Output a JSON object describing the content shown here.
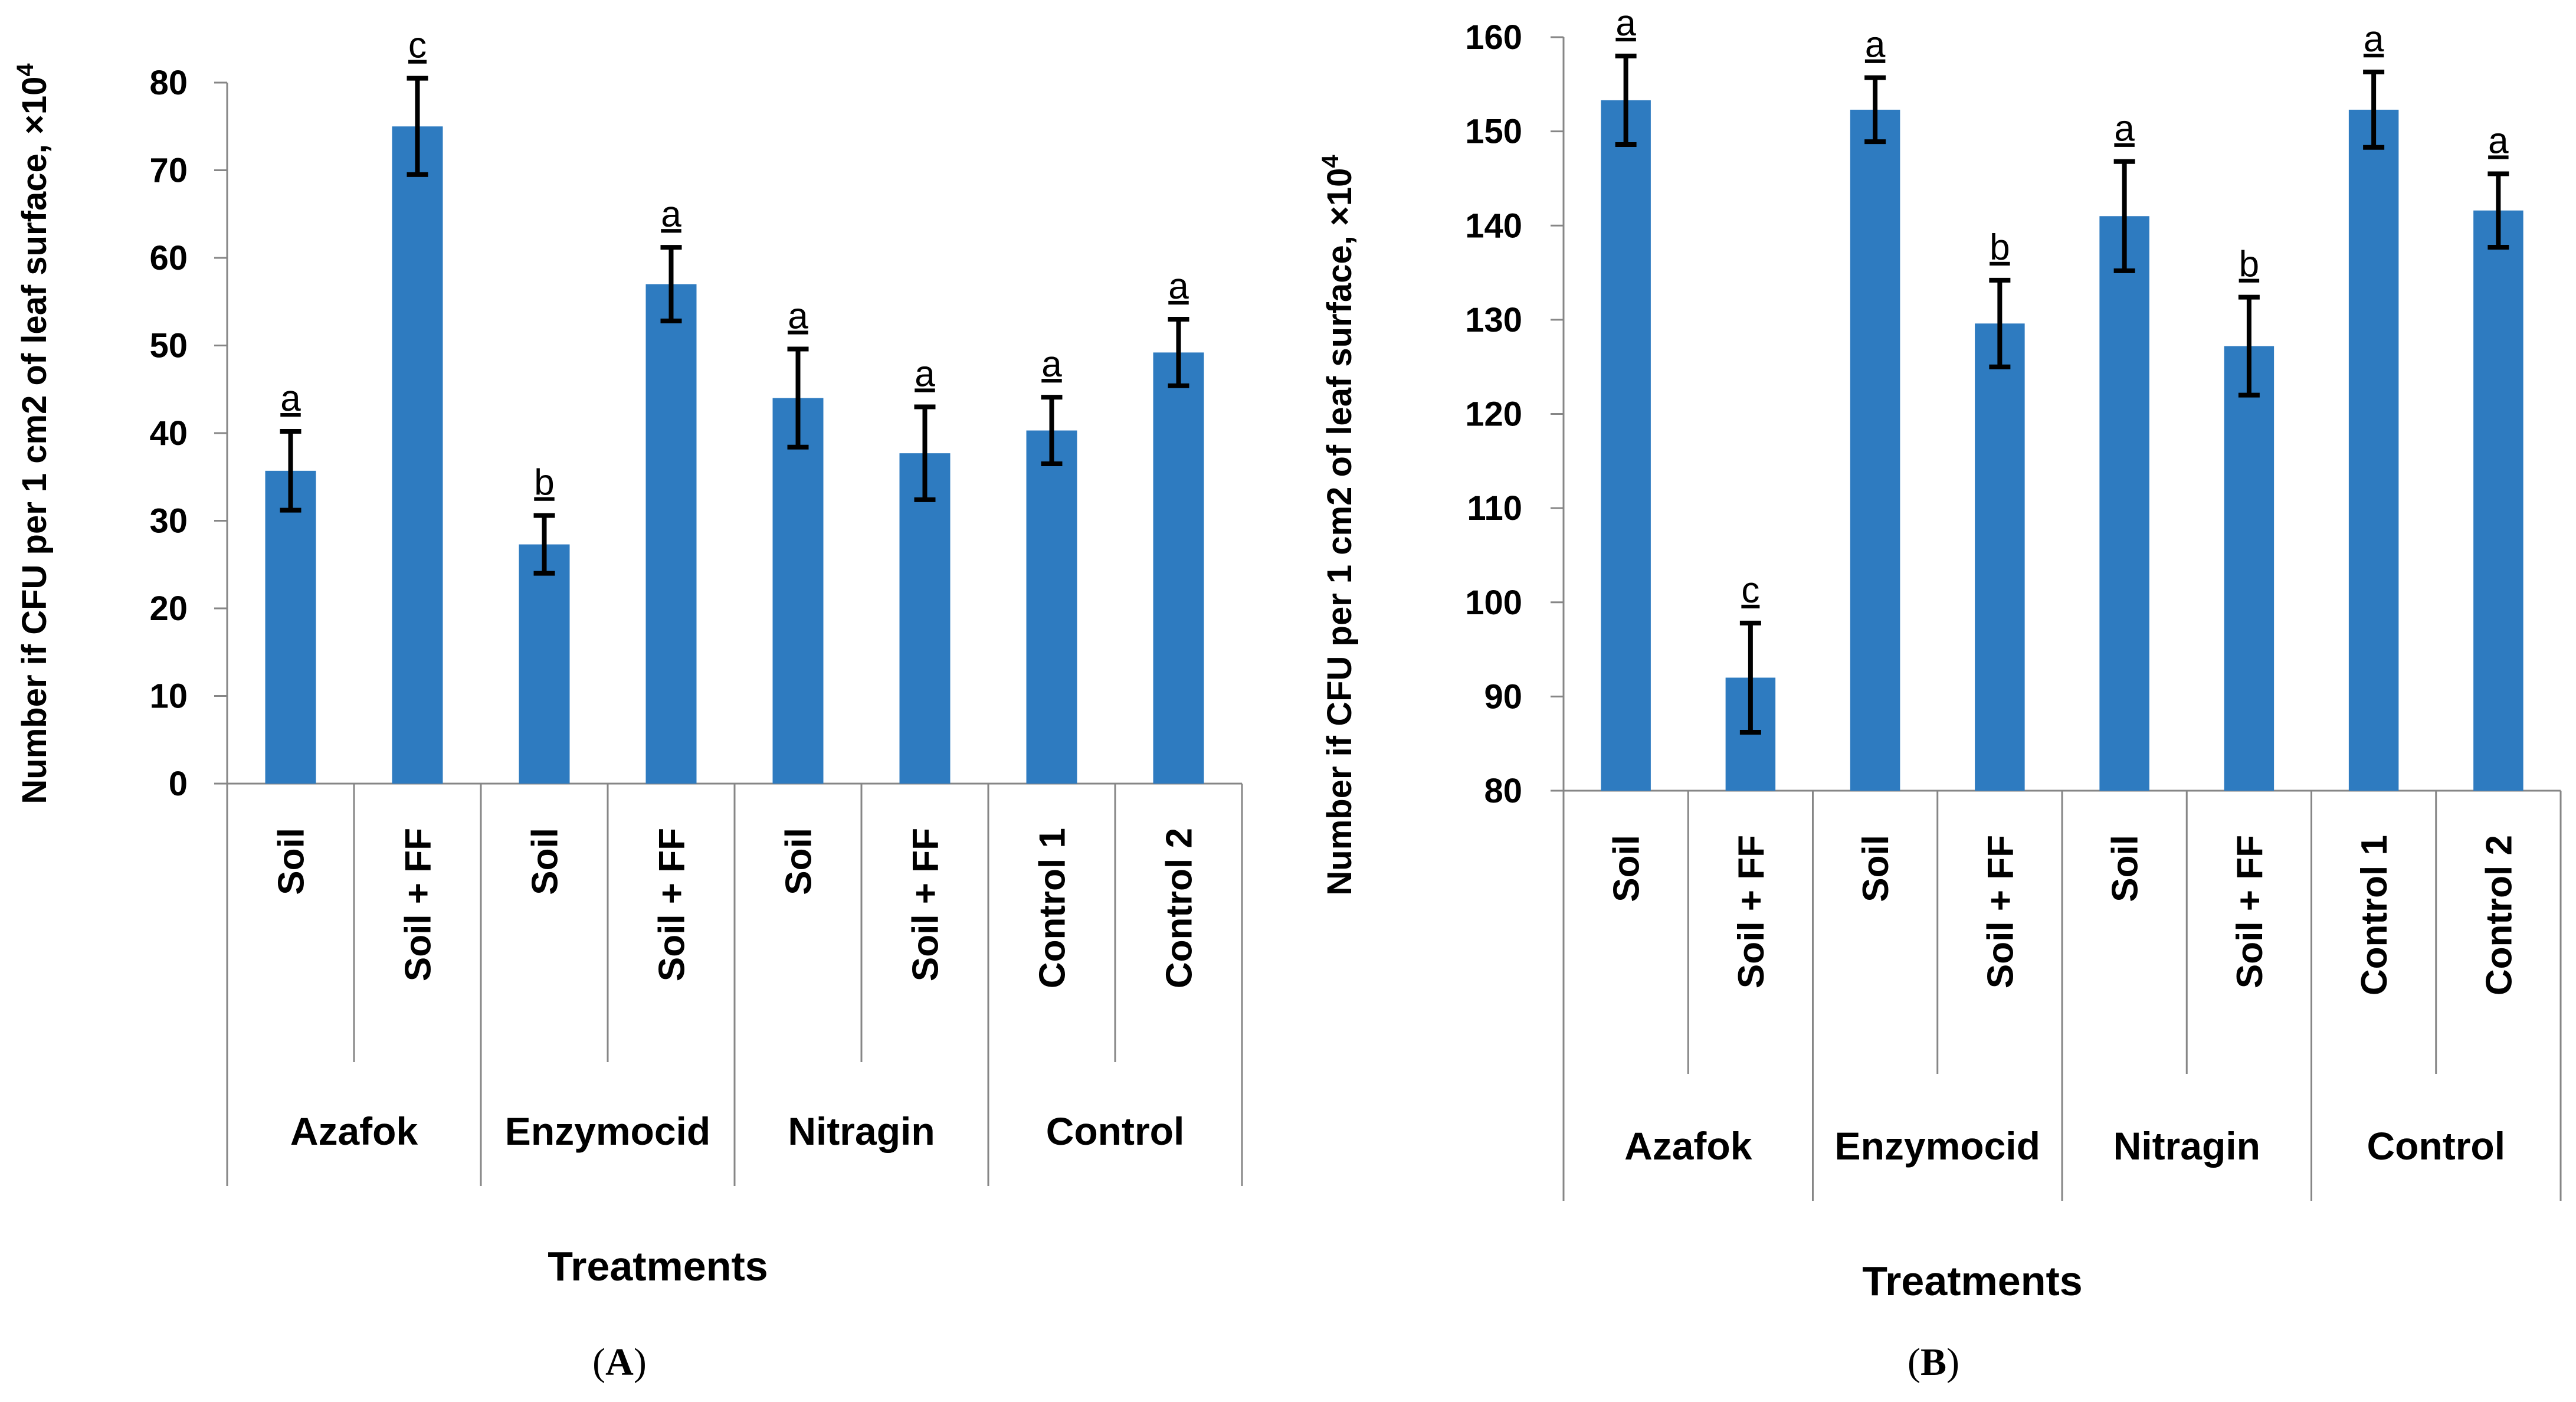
{
  "chart_data": [
    {
      "panel": "A",
      "type": "bar",
      "ylabel": "Number if CFU per 1 cm2 of leaf surface, ×10",
      "ylabel_exp": "4",
      "xlabel": "Treatments",
      "ylim": [
        0,
        80
      ],
      "yticks": [
        "0",
        "10",
        "20",
        "30",
        "40",
        "50",
        "60",
        "70",
        "80"
      ],
      "color": "#2E7BC0",
      "categories": [
        "Soil",
        "Soil + FF",
        "Soil",
        "Soil + FF",
        "Soil",
        "Soil + FF",
        "Control 1",
        "Control 2"
      ],
      "groups": [
        "Azafok",
        "Enzymocid",
        "Nitragin",
        "Control"
      ],
      "values": [
        35.7,
        75.0,
        27.3,
        57.0,
        44.0,
        37.7,
        40.3,
        49.2
      ],
      "errors": [
        4.5,
        5.5,
        3.3,
        4.2,
        5.6,
        5.3,
        3.8,
        3.8
      ],
      "significance": [
        "a",
        "c",
        "b",
        "a",
        "a",
        "a",
        "a",
        "a"
      ],
      "panel_label_open": "(",
      "panel_label_letter": "A",
      "panel_label_close": ")"
    },
    {
      "panel": "B",
      "type": "bar",
      "ylabel": "Number if CFU per 1 cm2 of leaf surface, ×10",
      "ylabel_exp": "4",
      "xlabel": "Treatments",
      "ylim": [
        80,
        160
      ],
      "yticks": [
        "80",
        "90",
        "100",
        "110",
        "120",
        "130",
        "140",
        "150",
        "160"
      ],
      "color": "#2E7BC0",
      "categories": [
        "Soil",
        "Soil + FF",
        "Soil",
        "Soil + FF",
        "Soil",
        "Soil + FF",
        "Control 1",
        "Control 2"
      ],
      "groups": [
        "Azafok",
        "Enzymocid",
        "Nitragin",
        "Control"
      ],
      "values": [
        153.3,
        92.0,
        152.3,
        129.6,
        141.0,
        127.2,
        152.3,
        141.6
      ],
      "errors": [
        4.7,
        5.8,
        3.4,
        4.6,
        5.8,
        5.2,
        4.0,
        3.9
      ],
      "significance": [
        "a",
        "c",
        "a",
        "b",
        "a",
        "b",
        "a",
        "a"
      ],
      "panel_label_open": "(",
      "panel_label_letter": "B",
      "panel_label_close": ")"
    }
  ]
}
